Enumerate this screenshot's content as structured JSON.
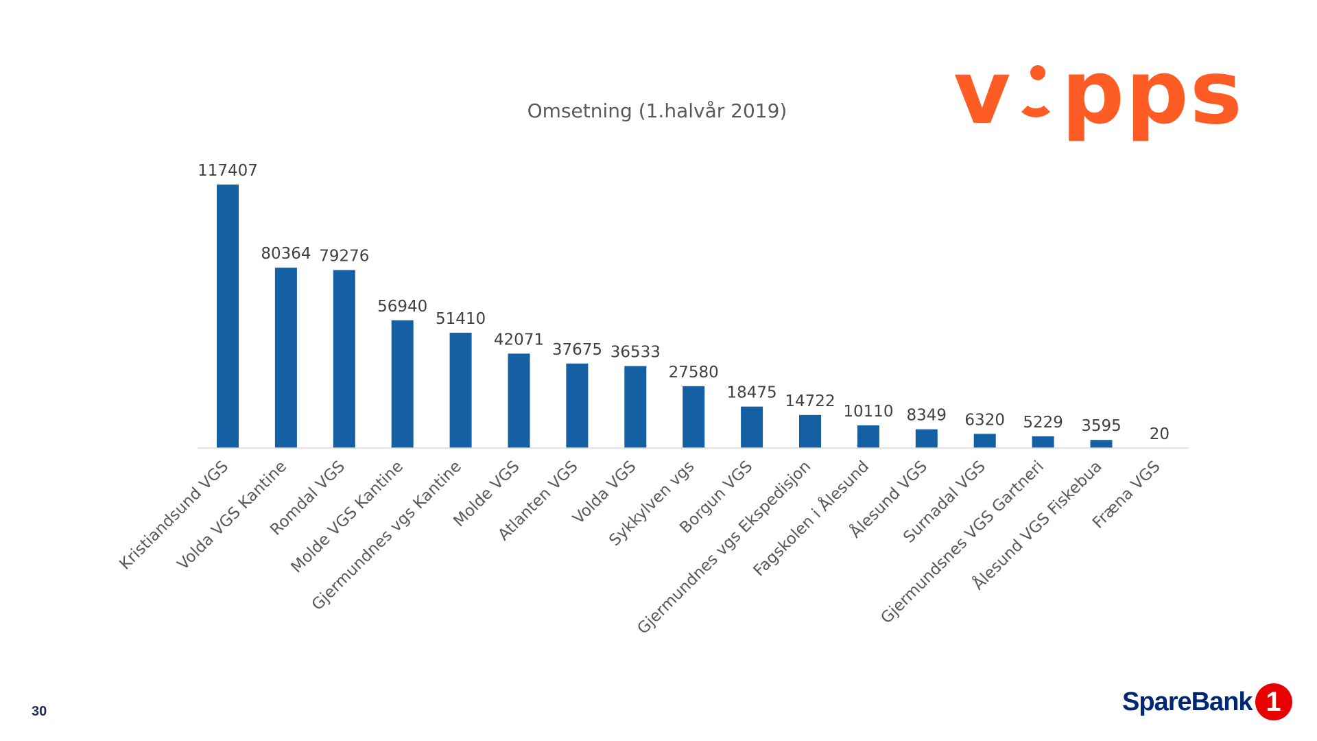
{
  "page": {
    "number": "30"
  },
  "brand": {
    "vipps_logo_text": "vipps",
    "vipps_prefix": "v",
    "vipps_suffix": "pps",
    "vipps_color": "#ff5b24",
    "sparebank_name": "SpareBank",
    "sparebank_badge": "1",
    "sparebank_color": "#002776",
    "sparebank_badge_color": "#e60000"
  },
  "chart_data": {
    "type": "bar",
    "title": "Omsetning (1.halvår 2019)",
    "xlabel": "",
    "ylabel": "",
    "ylim": [
      0,
      117407
    ],
    "grid": false,
    "legend": "none",
    "bar_color": "#155fa3",
    "categories": [
      "Kristiandsund VGS",
      "Volda VGS Kantine",
      "Romdal VGS",
      "Molde VGS Kantine",
      "Gjermundnes vgs Kantine",
      "Molde VGS",
      "Atlanten VGS",
      "Volda VGS",
      "Sykkylven vgs",
      "Borgun VGS",
      "Gjermundnes vgs Ekspedisjon",
      "Fagskolen i Ålesund",
      "Ålesund VGS",
      "Surnadal VGS",
      "Gjermundsnes VGS Gartneri",
      "Ålesund VGS Fiskebua",
      "Fræna VGS"
    ],
    "values": [
      117407,
      80364,
      79276,
      56940,
      51410,
      42071,
      37675,
      36533,
      27580,
      18475,
      14722,
      10110,
      8349,
      6320,
      5229,
      3595,
      20
    ]
  }
}
